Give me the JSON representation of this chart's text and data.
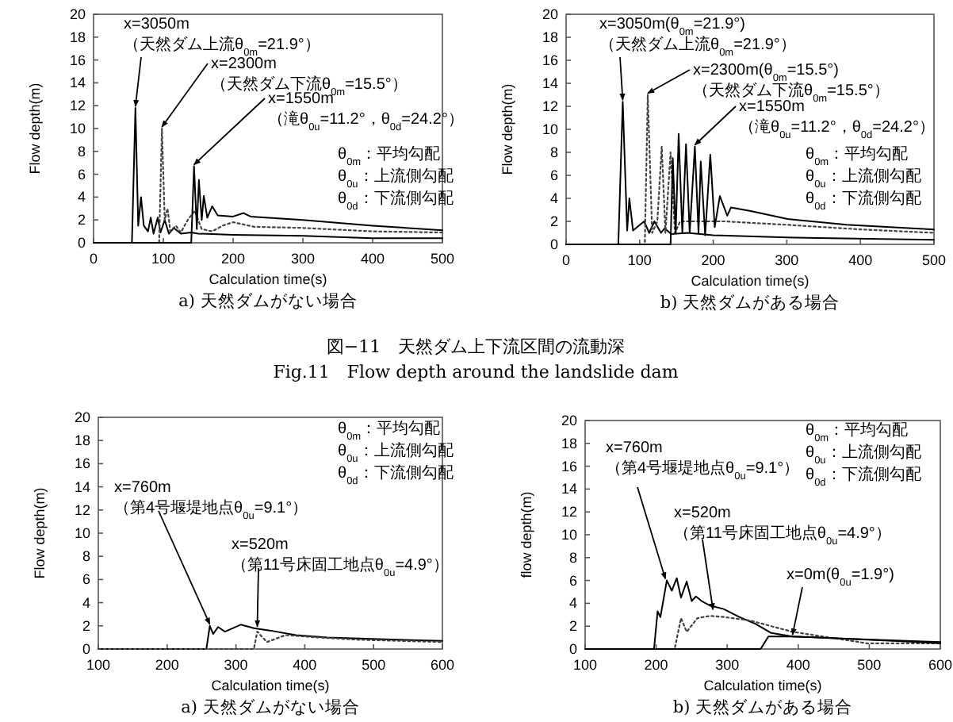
{
  "chart_data": [
    {
      "type": "line",
      "title": "a) 天然ダムがない場合",
      "xlabel": "Calculation time(s)",
      "ylabel": "Flow depth(m)",
      "xlim": [
        0,
        500
      ],
      "ylim": [
        0,
        20
      ],
      "xticks": [
        0,
        100,
        200,
        300,
        400,
        500
      ],
      "yticks": [
        0,
        2,
        4,
        6,
        8,
        10,
        12,
        14,
        16,
        18,
        20
      ],
      "series": [
        {
          "color": "#000000",
          "line_style": "solid",
          "x": [
            0,
            53,
            55,
            60,
            64,
            68,
            72,
            78,
            82,
            86,
            92,
            96,
            102,
            108,
            115,
            125,
            140,
            150,
            200,
            300,
            400,
            500
          ],
          "values": [
            0,
            0,
            0,
            11.8,
            1.5,
            4,
            1.5,
            1,
            2.2,
            0.8,
            2.2,
            0.9,
            2,
            0.8,
            1.3,
            0.8,
            0.9,
            0.8,
            0.7,
            0.6,
            0.4,
            0.4
          ]
        },
        {
          "color": "#444444",
          "line_style": "dotted",
          "x": [
            0,
            90,
            94,
            98,
            102,
            106,
            110,
            118,
            125,
            135,
            145,
            155,
            170,
            185,
            200,
            230,
            300,
            400,
            500
          ],
          "values": [
            0,
            0,
            0,
            10,
            2,
            3,
            1,
            1.5,
            0.9,
            2,
            2.8,
            1.2,
            1,
            1.5,
            1.8,
            1.4,
            1.3,
            1,
            0.9
          ]
        },
        {
          "color": "#000000",
          "line_style": "solid",
          "x": [
            0,
            138,
            140,
            144,
            148,
            151,
            155,
            158,
            163,
            170,
            178,
            200,
            215,
            225,
            300,
            400,
            500
          ],
          "values": [
            0,
            0,
            0,
            6.7,
            1.2,
            5.5,
            2,
            4.1,
            2.2,
            3.2,
            2.4,
            2.3,
            2.6,
            2.3,
            2,
            1.5,
            1.1
          ]
        }
      ],
      "annotations": [
        "θ$_{0m}$：平均勾配",
        "θ$_{0u}$：上流側勾配",
        "θ$_{0d}$：下流側勾配",
        "図−11　天然ダム上下流区間の流動深",
        "Fig.11　Flow depth around the landslide dam",
        {
          "text": "x=3050m\n（天然ダム上流θ$_{0m}$=21.9°）",
          "x": 60,
          "y": 11.8
        },
        {
          "text": "x=2300m\n（天然ダム下流θ$_{0m}$=15.5°）",
          "x": 98,
          "y": 10
        },
        {
          "text": "x=1550m\n（滝θ$_{0u}$=11.2°，θ$_{0d}$=24.2°）",
          "x": 144,
          "y": 6.7
        }
      ]
    },
    {
      "type": "line",
      "title": "b) 天然ダムがある場合",
      "xlabel": "Calculation time(s)",
      "ylabel": "Flow depth(m)",
      "xlim": [
        0,
        500
      ],
      "ylim": [
        0,
        20
      ],
      "xticks": [
        0,
        100,
        200,
        300,
        400,
        500
      ],
      "yticks": [
        0,
        2,
        4,
        6,
        8,
        10,
        12,
        14,
        16,
        18,
        20
      ],
      "series": [
        {
          "color": "#000000",
          "line_style": "solid",
          "x": [
            0,
            69,
            71,
            77,
            83,
            86,
            91,
            106,
            113,
            120,
            129,
            134,
            143,
            165,
            200,
            300,
            500
          ],
          "values": [
            0,
            0,
            0,
            12.4,
            1.2,
            4,
            1.2,
            2,
            1,
            2,
            1,
            1.4,
            0.9,
            1,
            0.8,
            0.6,
            0.4
          ]
        },
        {
          "color": "#444444",
          "line_style": "dotted",
          "x": [
            0,
            105,
            107,
            111,
            117,
            124,
            130,
            135,
            142,
            148,
            155,
            215,
            300,
            400,
            500
          ],
          "values": [
            0,
            0,
            0,
            13,
            1,
            2,
            8.5,
            1,
            8,
            1,
            2,
            2,
            1.7,
            1.3,
            1
          ]
        },
        {
          "color": "#000000",
          "line_style": "solid",
          "x": [
            0,
            140,
            142,
            145,
            149,
            153,
            158,
            163,
            168,
            175,
            180,
            183,
            189,
            196,
            202,
            209,
            219,
            224,
            251,
            301,
            381,
            500
          ],
          "values": [
            0,
            0,
            0,
            7.5,
            1,
            9.6,
            1,
            8.7,
            1,
            8.5,
            1,
            7.2,
            0.8,
            7.8,
            1.5,
            4.2,
            2.5,
            3.2,
            2.9,
            2.2,
            1.7,
            1.3
          ]
        }
      ],
      "annotations": [
        "θ$_{0m}$：平均勾配",
        "θ$_{0u}$：上流側勾配",
        "θ$_{0d}$：下流側勾配",
        {
          "text": "x=3050m(θ$_{0m}$=21.9°)\n（天然ダム上流θ$_{0m}$=21.9°）",
          "x": 77,
          "y": 12.4
        },
        {
          "text": "x=2300m(θ$_{0m}$=15.5°)\n（天然ダム下流θ$_{0m}$=15.5°）",
          "x": 111,
          "y": 13
        },
        {
          "text": "x=1550m\n（滝θ$_{0u}$=11.2°，θ$_{0d}$=24.2°）",
          "x": 175,
          "y": 8.5
        }
      ]
    },
    {
      "type": "line",
      "title": "a) 天然ダムがない場合",
      "xlabel": "Calculation time(s)",
      "ylabel": "Flow depth(m)",
      "xlim": [
        100,
        600
      ],
      "ylim": [
        0,
        20
      ],
      "xticks": [
        100,
        200,
        300,
        400,
        500,
        600
      ],
      "yticks": [
        0,
        2,
        4,
        6,
        8,
        10,
        12,
        14,
        16,
        18,
        20
      ],
      "series": [
        {
          "color": "#000000",
          "line_style": "solid",
          "x": [
            100,
            255,
            257,
            262,
            267,
            274,
            284,
            307,
            326,
            349,
            387,
            433,
            479,
            600
          ],
          "values": [
            0,
            0,
            0,
            2,
            1.3,
            1.9,
            1.5,
            2.1,
            1.8,
            1.6,
            1.2,
            1,
            0.9,
            0.7
          ]
        },
        {
          "color": "#444444",
          "line_style": "dotted",
          "x": [
            100,
            324,
            326,
            331,
            345,
            372,
            418,
            479,
            600
          ],
          "values": [
            0,
            0,
            0,
            1.5,
            0.6,
            1.2,
            1,
            0.8,
            0.6
          ]
        }
      ],
      "annotations": [
        "θ$_{0m}$：平均勾配",
        "θ$_{0u}$：上流側勾配",
        "θ$_{0d}$：下流側勾配",
        {
          "text": "x=760m\n（第4号堰堤地点θ$_{0u}$=9.1°）",
          "x": 262,
          "y": 2
        },
        {
          "text": "x=520m\n（第11号床固工地点θ$_{0u}$=4.9°）",
          "x": 331,
          "y": 1.8
        }
      ]
    },
    {
      "type": "line",
      "title": "b) 天然ダムがある場合",
      "xlabel": "Calculation time(s)",
      "ylabel": "flow depth(m)",
      "xlim": [
        100,
        600
      ],
      "ylim": [
        0,
        20
      ],
      "xticks": [
        100,
        200,
        300,
        400,
        500,
        600
      ],
      "yticks": [
        0,
        2,
        4,
        6,
        8,
        10,
        12,
        14,
        16,
        18,
        20
      ],
      "series": [
        {
          "color": "#000000",
          "line_style": "solid",
          "x": [
            100,
            195,
            197,
            202,
            206,
            215,
            222,
            229,
            235,
            243,
            250,
            256,
            264,
            276,
            295,
            317,
            340,
            362,
            392,
            466,
            600
          ],
          "values": [
            0,
            0,
            0,
            3.3,
            2.8,
            6,
            5.1,
            6.2,
            4.5,
            5.9,
            4.2,
            4.6,
            4.2,
            3.8,
            3.5,
            2.8,
            2.2,
            1.4,
            1.1,
            0.9,
            0.6
          ]
        },
        {
          "color": "#444444",
          "line_style": "dotted",
          "x": [
            100,
            224,
            226,
            235,
            243,
            258,
            276,
            295,
            332,
            392,
            466,
            496,
            600
          ],
          "values": [
            0,
            0,
            0,
            2.7,
            1.5,
            2.7,
            2.9,
            2.8,
            2.5,
            1.5,
            0.8,
            0.5,
            0.5
          ]
        },
        {
          "color": "#000000",
          "line_style": "solid",
          "x": [
            100,
            345,
            347,
            358,
            392,
            466,
            540,
            600
          ],
          "values": [
            0,
            0,
            0,
            1.1,
            1.1,
            0.9,
            0.7,
            0.5
          ]
        }
      ],
      "annotations": [
        "θ$_{0m}$：平均勾配",
        "θ$_{0u}$：上流側勾配",
        "θ$_{0d}$：下流側勾配",
        {
          "text": "x=760m\n（第4号堰堤地点θ$_{0u}$=9.1°）",
          "x": 213,
          "y": 6
        },
        {
          "text": "x=520m\n（第11号床固工地点θ$_{0u}$=4.9°）",
          "x": 280,
          "y": 3.3
        },
        {
          "text": "x=0m(θ$_{0u}$=1.9°)",
          "x": 392,
          "y": 1.1
        }
      ]
    }
  ]
}
